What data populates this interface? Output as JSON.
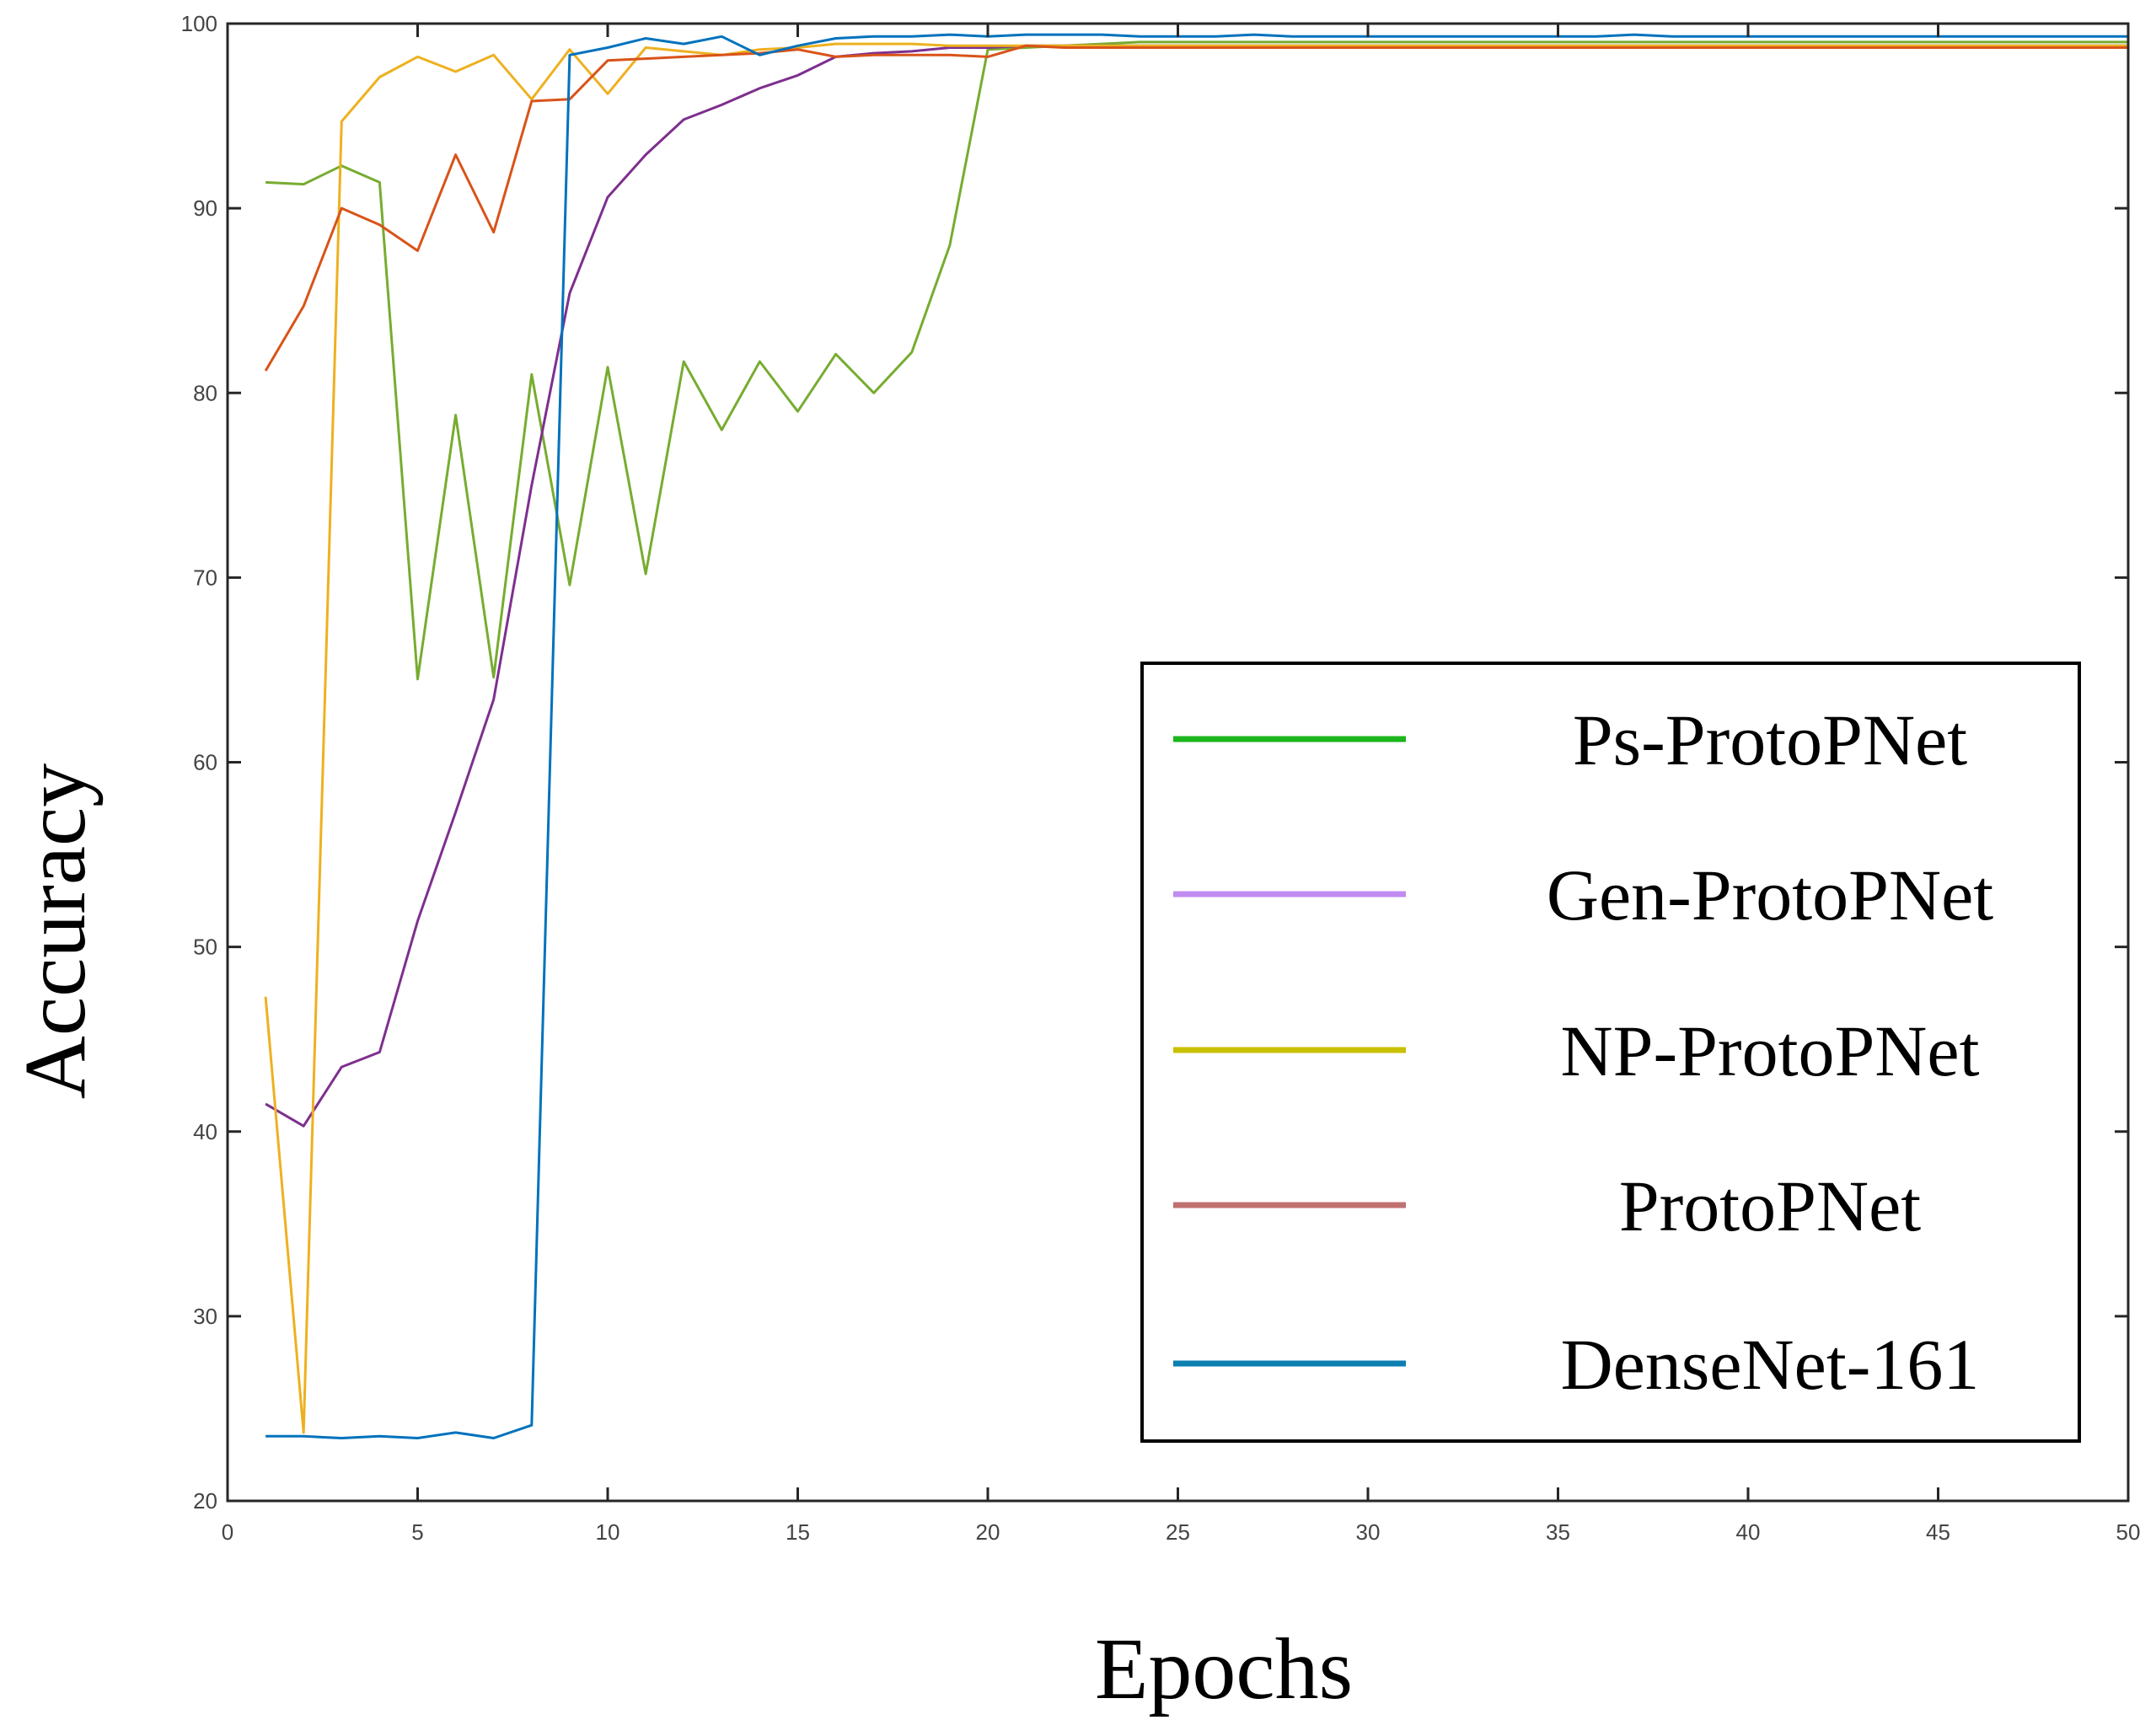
{
  "chart_data": {
    "type": "line",
    "title": "",
    "xlabel": "Epochs",
    "ylabel": "Accuracy",
    "xlim": [
      0,
      50
    ],
    "ylim": [
      20,
      100
    ],
    "xticks": [
      0,
      5,
      10,
      15,
      20,
      25,
      30,
      35,
      40,
      45,
      50
    ],
    "yticks": [
      20,
      30,
      40,
      50,
      60,
      70,
      80,
      90,
      100
    ],
    "grid": false,
    "legend_position": "lower-right",
    "x": [
      1,
      2,
      3,
      4,
      5,
      6,
      7,
      8,
      9,
      10,
      11,
      12,
      13,
      14,
      15,
      16,
      17,
      18,
      19,
      20,
      21,
      22,
      23,
      24,
      25,
      26,
      27,
      28,
      29,
      30,
      31,
      32,
      33,
      34,
      35,
      36,
      37,
      38,
      39,
      40,
      41,
      42,
      43,
      44,
      45,
      46,
      47,
      48,
      49,
      50
    ],
    "series": [
      {
        "name": "Ps-ProtoPNet",
        "legend_color": "#1cb51c",
        "line_color": "#77ac30",
        "values": [
          91.4,
          91.3,
          92.3,
          91.4,
          64.5,
          78.8,
          64.6,
          81.0,
          69.6,
          81.4,
          70.2,
          81.7,
          78.0,
          81.7,
          79.0,
          82.1,
          80.0,
          82.2,
          88.0,
          98.6,
          98.7,
          98.8,
          98.9,
          99.0,
          99.0,
          99.0,
          99.0,
          99.0,
          99.0,
          99.0,
          99.0,
          99.0,
          99.0,
          99.0,
          99.0,
          99.0,
          99.0,
          99.0,
          99.0,
          99.0,
          99.0,
          99.0,
          99.0,
          99.0,
          99.0,
          99.0,
          99.0,
          99.0,
          99.0,
          99.0
        ]
      },
      {
        "name": "Gen-ProtoPNet",
        "legend_color": "#c08cf0",
        "line_color": "#7e2f8e",
        "values": [
          41.5,
          40.3,
          43.5,
          44.3,
          51.4,
          57.3,
          63.4,
          75.0,
          85.4,
          90.6,
          92.9,
          94.8,
          95.6,
          96.5,
          97.2,
          98.2,
          98.4,
          98.5,
          98.7,
          98.7,
          98.8,
          98.8,
          98.8,
          98.8,
          98.8,
          98.8,
          98.8,
          98.8,
          98.8,
          98.8,
          98.8,
          98.8,
          98.8,
          98.8,
          98.8,
          98.8,
          98.8,
          98.8,
          98.8,
          98.8,
          98.8,
          98.8,
          98.8,
          98.8,
          98.8,
          98.8,
          98.8,
          98.8,
          98.8,
          98.8
        ]
      },
      {
        "name": "NP-ProtoPNet",
        "legend_color": "#c8c000",
        "line_color": "#edb120",
        "values": [
          47.3,
          23.7,
          94.7,
          97.1,
          98.2,
          97.4,
          98.3,
          95.9,
          98.6,
          96.2,
          98.7,
          98.5,
          98.3,
          98.6,
          98.7,
          98.9,
          98.9,
          98.9,
          98.8,
          98.8,
          98.8,
          98.8,
          98.8,
          98.8,
          98.8,
          98.8,
          98.8,
          98.8,
          98.8,
          98.8,
          98.8,
          98.8,
          98.8,
          98.8,
          98.8,
          98.8,
          98.8,
          98.8,
          98.8,
          98.8,
          98.8,
          98.8,
          98.8,
          98.8,
          98.8,
          98.8,
          98.8,
          98.8,
          98.8,
          98.8
        ]
      },
      {
        "name": "ProtoPNet",
        "legend_color": "#c07070",
        "line_color": "#d95319",
        "values": [
          81.2,
          84.7,
          90.0,
          89.1,
          87.7,
          92.9,
          88.7,
          95.8,
          95.9,
          98.0,
          98.1,
          98.2,
          98.3,
          98.4,
          98.6,
          98.2,
          98.3,
          98.3,
          98.3,
          98.2,
          98.8,
          98.7,
          98.7,
          98.7,
          98.7,
          98.7,
          98.7,
          98.7,
          98.7,
          98.7,
          98.7,
          98.7,
          98.7,
          98.7,
          98.7,
          98.7,
          98.7,
          98.7,
          98.7,
          98.7,
          98.7,
          98.7,
          98.7,
          98.7,
          98.7,
          98.7,
          98.7,
          98.7,
          98.7,
          98.7
        ]
      },
      {
        "name": "DenseNet-161",
        "legend_color": "#0a7fb0",
        "line_color": "#0072bd",
        "values": [
          23.5,
          23.5,
          23.4,
          23.5,
          23.4,
          23.7,
          23.4,
          24.1,
          98.3,
          98.7,
          99.2,
          98.9,
          99.3,
          98.3,
          98.8,
          99.2,
          99.3,
          99.3,
          99.4,
          99.3,
          99.4,
          99.4,
          99.4,
          99.3,
          99.3,
          99.3,
          99.4,
          99.3,
          99.3,
          99.3,
          99.3,
          99.3,
          99.3,
          99.3,
          99.3,
          99.3,
          99.4,
          99.3,
          99.3,
          99.3,
          99.3,
          99.3,
          99.3,
          99.3,
          99.3,
          99.3,
          99.3,
          99.3,
          99.3,
          99.3
        ]
      }
    ]
  }
}
